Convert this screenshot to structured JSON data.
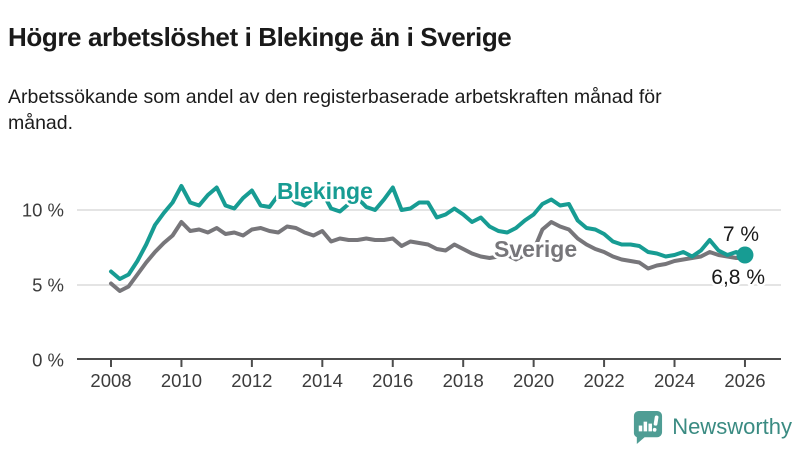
{
  "chart_data": {
    "type": "line",
    "title": "Högre arbetslöshet i Blekinge än i Sverige",
    "subtitle": "Arbetssökande som andel av den registerbaserade arbetskraften månad för månad.",
    "x_unit": "year (monthly series shown, sampled quarterly)",
    "ylabel": "",
    "xlabel": "",
    "ylim": [
      0,
      13
    ],
    "xlim": [
      2007.5,
      2027
    ],
    "grid": "horizontal-light",
    "legend": "inline-series-labels",
    "x": [
      2008,
      2008.25,
      2008.5,
      2008.75,
      2009,
      2009.25,
      2009.5,
      2009.75,
      2010,
      2010.25,
      2010.5,
      2010.75,
      2011,
      2011.25,
      2011.5,
      2011.75,
      2012,
      2012.25,
      2012.5,
      2012.75,
      2013,
      2013.25,
      2013.5,
      2013.75,
      2014,
      2014.25,
      2014.5,
      2014.75,
      2015,
      2015.25,
      2015.5,
      2015.75,
      2016,
      2016.25,
      2016.5,
      2016.75,
      2017,
      2017.25,
      2017.5,
      2017.75,
      2018,
      2018.25,
      2018.5,
      2018.75,
      2019,
      2019.25,
      2019.5,
      2019.75,
      2020,
      2020.25,
      2020.5,
      2020.75,
      2021,
      2021.25,
      2021.5,
      2021.75,
      2022,
      2022.25,
      2022.5,
      2022.75,
      2023,
      2023.25,
      2023.5,
      2023.75,
      2024,
      2024.25,
      2024.5,
      2024.75,
      2025,
      2025.25,
      2025.5,
      2025.75,
      2026
    ],
    "series": [
      {
        "name": "Blekinge",
        "color": "#179c93",
        "end_label": "7 %",
        "end_value": 7.0,
        "values": [
          5.9,
          5.4,
          5.7,
          6.6,
          7.7,
          9.0,
          9.8,
          10.5,
          11.6,
          10.5,
          10.3,
          11.0,
          11.5,
          10.3,
          10.1,
          10.8,
          11.3,
          10.3,
          10.2,
          11.0,
          11.1,
          10.5,
          10.3,
          10.8,
          11.2,
          10.1,
          9.9,
          10.4,
          10.8,
          10.2,
          10.0,
          10.7,
          11.5,
          10.0,
          10.1,
          10.5,
          10.5,
          9.5,
          9.7,
          10.1,
          9.7,
          9.2,
          9.5,
          8.9,
          8.6,
          8.5,
          8.8,
          9.3,
          9.7,
          10.4,
          10.7,
          10.3,
          10.4,
          9.3,
          8.8,
          8.7,
          8.4,
          7.9,
          7.7,
          7.7,
          7.6,
          7.2,
          7.1,
          6.9,
          7.0,
          7.2,
          6.9,
          7.3,
          8.0,
          7.3,
          7.0,
          7.2,
          7.0
        ]
      },
      {
        "name": "Sverige",
        "color": "#77767a",
        "end_label": "6,8 %",
        "end_value": 6.8,
        "values": [
          5.1,
          4.6,
          4.9,
          5.7,
          6.5,
          7.2,
          7.8,
          8.3,
          9.2,
          8.6,
          8.7,
          8.5,
          8.8,
          8.4,
          8.5,
          8.3,
          8.7,
          8.8,
          8.6,
          8.5,
          8.9,
          8.8,
          8.5,
          8.3,
          8.6,
          7.9,
          8.1,
          8.0,
          8.0,
          8.1,
          8.0,
          8.0,
          8.1,
          7.6,
          7.9,
          7.8,
          7.7,
          7.4,
          7.3,
          7.7,
          7.4,
          7.1,
          6.9,
          6.8,
          6.9,
          7.0,
          6.7,
          7.0,
          7.3,
          8.7,
          9.2,
          8.9,
          8.7,
          8.1,
          7.7,
          7.4,
          7.2,
          6.9,
          6.7,
          6.6,
          6.5,
          6.1,
          6.3,
          6.4,
          6.6,
          6.7,
          6.8,
          6.9,
          7.2,
          7.0,
          6.9,
          6.8,
          6.8
        ]
      }
    ],
    "yticks": [
      {
        "value": 0,
        "label": "0 %"
      },
      {
        "value": 5,
        "label": "5 %"
      },
      {
        "value": 10,
        "label": "10 %"
      }
    ],
    "xticks": [
      {
        "value": 2008,
        "label": "2008"
      },
      {
        "value": 2010,
        "label": "2010"
      },
      {
        "value": 2012,
        "label": "2012"
      },
      {
        "value": 2014,
        "label": "2014"
      },
      {
        "value": 2016,
        "label": "2016"
      },
      {
        "value": 2018,
        "label": "2018"
      },
      {
        "value": 2020,
        "label": "2020"
      },
      {
        "value": 2022,
        "label": "2022"
      },
      {
        "value": 2024,
        "label": "2024"
      },
      {
        "value": 2026,
        "label": "2026"
      }
    ]
  },
  "branding": {
    "name": "Newsworthy",
    "icon": "bar-chart-speech-bubble-icon",
    "text_color": "#3a8b82",
    "icon_color": "#4f9d94"
  }
}
